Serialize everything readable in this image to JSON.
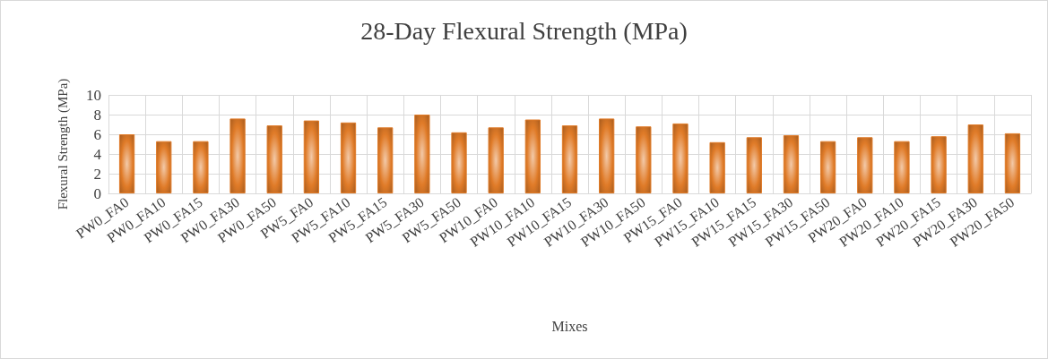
{
  "chart_data": {
    "type": "bar",
    "title": "28-Day Flexural Strength (MPa)",
    "xlabel": "Mixes",
    "ylabel": "Flexural Strength (MPa)",
    "categories": [
      "PW0_FA0",
      "PW0_FA10",
      "PW0_FA15",
      "PW0_FA30",
      "PW0_FA50",
      "PW5_FA0",
      "PW5_FA10",
      "PW5_FA15",
      "PW5_FA30",
      "PW5_FA50",
      "PW10_FA0",
      "PW10_FA10",
      "PW10_FA15",
      "PW10_FA30",
      "PW10_FA50",
      "PW15_FA0",
      "PW15_FA10",
      "PW15_FA15",
      "PW15_FA30",
      "PW15_FA50",
      "PW20_FA0",
      "PW20_FA10",
      "PW20_FA15",
      "PW20_FA30",
      "PW20_FA50"
    ],
    "values": [
      6.0,
      5.3,
      5.3,
      7.6,
      6.9,
      7.4,
      7.2,
      6.7,
      8.0,
      6.2,
      6.7,
      7.5,
      6.9,
      7.6,
      6.8,
      7.1,
      5.2,
      5.7,
      5.9,
      5.3,
      5.7,
      5.3,
      5.8,
      7.0,
      6.1
    ],
    "color": "#e07b28",
    "ylim": [
      0,
      10
    ],
    "yticks": [
      0,
      2,
      4,
      6,
      8,
      10
    ],
    "grid": true
  }
}
